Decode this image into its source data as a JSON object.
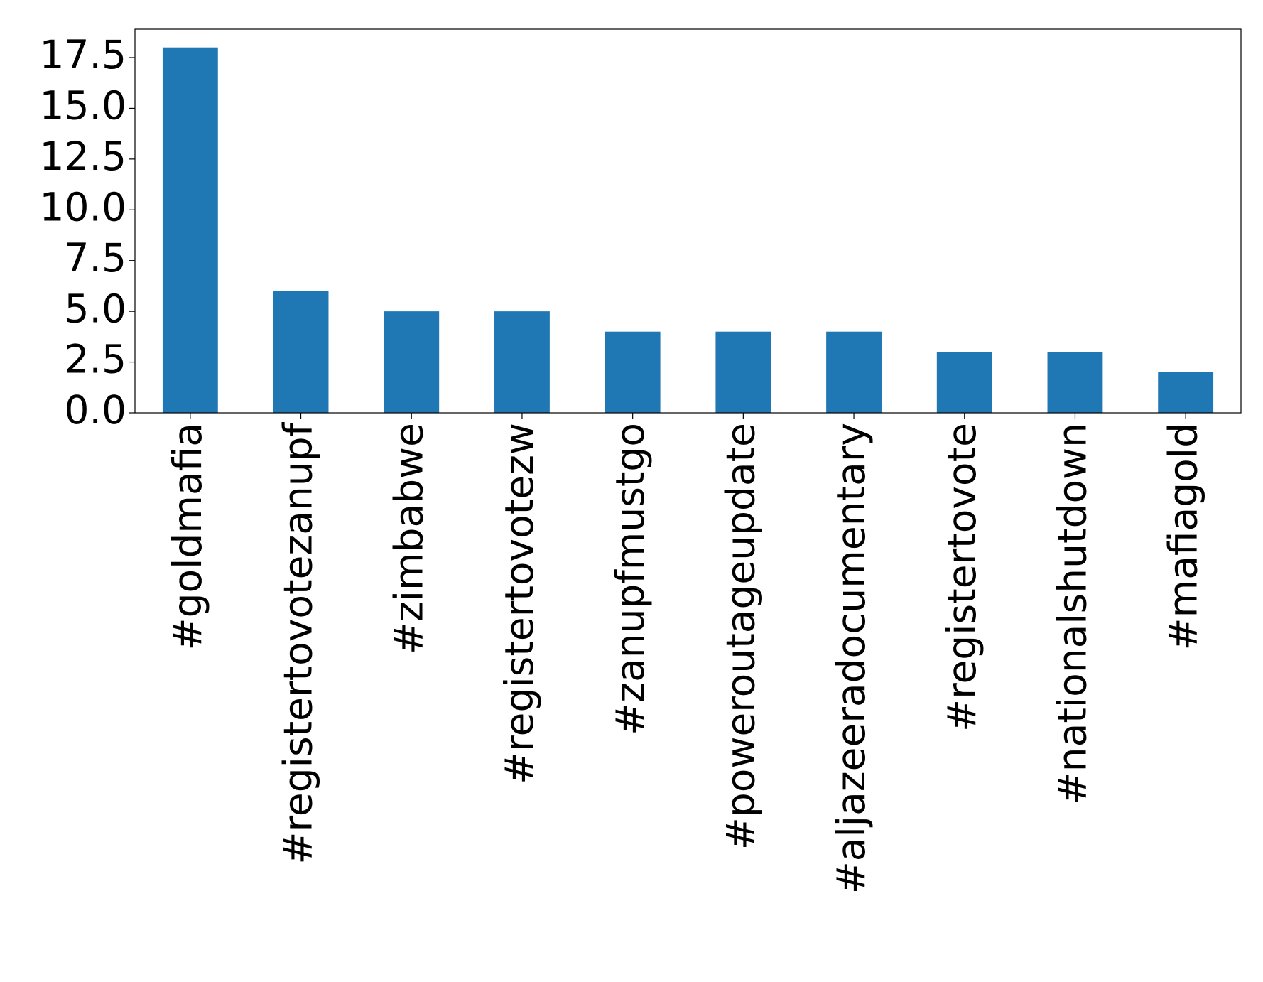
{
  "chart_data": {
    "type": "bar",
    "categories": [
      "#goldmafia",
      "#registertovotezanupf",
      "#zimbabwe",
      "#registertovotezw",
      "#zanupfmustgo",
      "#poweroutageupdate",
      "#aljazeeradocumentary",
      "#registertovote",
      "#nationalshutdown",
      "#mafiagold"
    ],
    "values": [
      18,
      6,
      5,
      5,
      4,
      4,
      4,
      3,
      3,
      2
    ],
    "color": "#1f77b4",
    "ylim": [
      0,
      18.9
    ],
    "yticks": [
      {
        "value": 0,
        "label": "0.0"
      },
      2.5,
      {
        "value": 5,
        "label": "5.0"
      },
      7.5,
      {
        "value": 10,
        "label": "10.0"
      },
      12.5,
      {
        "value": 15,
        "label": "15.0"
      },
      17.5
    ],
    "grid": false
  }
}
